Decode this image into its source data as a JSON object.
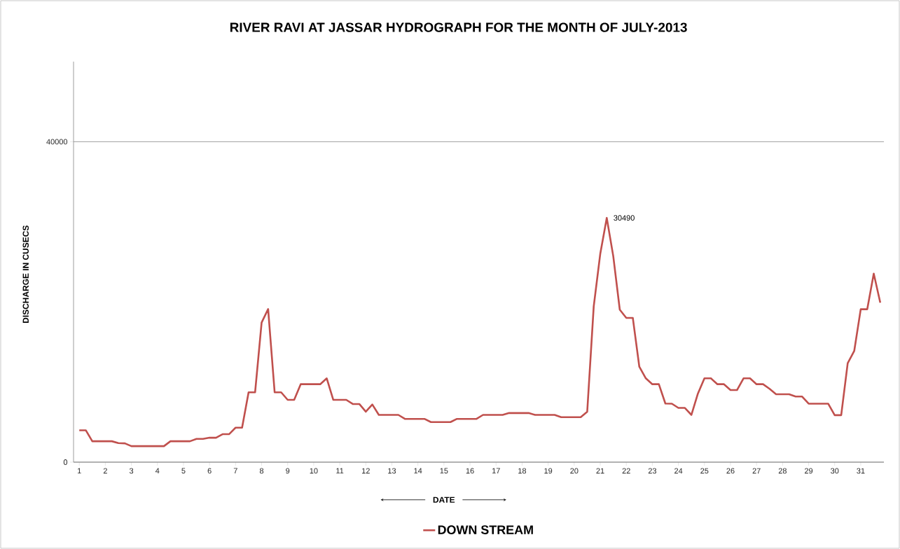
{
  "chart_data": {
    "type": "line",
    "title": "RIVER  RAVI AT  JASSAR HYDROGRAPH FOR THE MONTH OF JULY-2013",
    "xlabel": "DATE",
    "ylabel": "DISCHARGE IN CUSECS",
    "x": [
      1,
      1.25,
      1.5,
      1.75,
      2,
      2.25,
      2.5,
      2.75,
      3,
      3.25,
      3.5,
      3.75,
      4,
      4.25,
      4.5,
      4.75,
      5,
      5.25,
      5.5,
      5.75,
      6,
      6.25,
      6.5,
      6.75,
      7,
      7.25,
      7.5,
      7.75,
      8,
      8.25,
      8.5,
      8.75,
      9,
      9.25,
      9.5,
      9.75,
      10,
      10.25,
      10.5,
      10.75,
      11,
      11.25,
      11.5,
      11.75,
      12,
      12.25,
      12.5,
      12.75,
      13,
      13.25,
      13.5,
      13.75,
      14,
      14.25,
      14.5,
      14.75,
      15,
      15.25,
      15.5,
      15.75,
      16,
      16.25,
      16.5,
      16.75,
      17,
      17.25,
      17.5,
      17.75,
      18,
      18.25,
      18.5,
      18.75,
      19,
      19.25,
      19.5,
      19.75,
      20,
      20.25,
      20.5,
      20.75,
      21,
      21.25,
      21.5,
      21.75,
      22,
      22.25,
      22.5,
      22.75,
      23,
      23.25,
      23.5,
      23.75,
      24,
      24.25,
      24.5,
      24.75,
      25,
      25.25,
      25.5,
      25.75,
      26,
      26.25,
      26.5,
      26.75,
      27,
      27.25,
      27.5,
      27.75,
      28,
      28.25,
      28.5,
      28.75,
      29,
      29.25,
      29.5,
      29.75,
      30,
      30.25,
      30.5,
      30.75,
      31,
      31.25,
      31.5,
      31.75
    ],
    "series": [
      {
        "name": "DOWN STREAM",
        "color": "#c0504d",
        "values": [
          3980,
          3980,
          2610,
          2610,
          2610,
          2610,
          2380,
          2350,
          2000,
          2000,
          2000,
          2000,
          2000,
          2000,
          2610,
          2610,
          2610,
          2610,
          2900,
          2900,
          3050,
          3050,
          3490,
          3490,
          4300,
          4300,
          8720,
          8720,
          17430,
          19110,
          8720,
          8720,
          7780,
          7780,
          9730,
          9730,
          9730,
          9730,
          10460,
          7780,
          7780,
          7780,
          7260,
          7260,
          6300,
          7200,
          5900,
          5900,
          5900,
          5900,
          5400,
          5400,
          5400,
          5400,
          5000,
          5000,
          5000,
          5000,
          5400,
          5400,
          5400,
          5400,
          5900,
          5900,
          5900,
          5900,
          6130,
          6130,
          6130,
          6130,
          5900,
          5900,
          5900,
          5900,
          5610,
          5610,
          5610,
          5610,
          6300,
          19460,
          26000,
          30490,
          25710,
          19030,
          18010,
          18010,
          11910,
          10460,
          9730,
          9730,
          7320,
          7300,
          6770,
          6770,
          5900,
          8570,
          10460,
          10460,
          9730,
          9730,
          9000,
          9000,
          10460,
          10460,
          9730,
          9730,
          9150,
          8480,
          8480,
          8480,
          8190,
          8190,
          7300,
          7300,
          7300,
          7300,
          5870,
          5870,
          12350,
          13880,
          19090,
          19090,
          23530,
          19900
        ]
      }
    ],
    "xlim": [
      0.78,
      31.89
    ],
    "xticks": [
      1,
      2,
      3,
      4,
      5,
      6,
      7,
      8,
      9,
      10,
      11,
      12,
      13,
      14,
      15,
      16,
      17,
      18,
      19,
      20,
      21,
      22,
      23,
      24,
      25,
      26,
      27,
      28,
      29,
      30,
      31
    ],
    "ylim": [
      0,
      50000
    ],
    "yticks": [
      0,
      40000
    ],
    "grid": "y",
    "legend": "bottom",
    "marker": "none",
    "line_style": "solid",
    "annotations": [
      {
        "text": "30490",
        "x": 21.25,
        "y": 30490
      }
    ]
  }
}
